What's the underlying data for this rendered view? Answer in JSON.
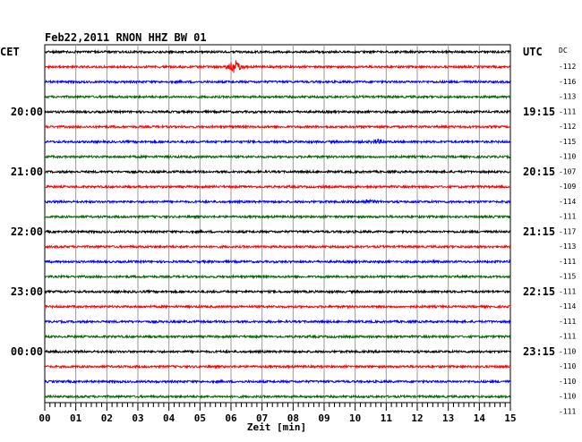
{
  "chart_data": {
    "type": "line",
    "title": "Feb22,2011   RNON HHZ BW 01",
    "xlabel": "Zeit [min]",
    "left_tz": "CET",
    "right_tz": "UTC",
    "dc_label": "DC",
    "xlim": [
      0,
      15
    ],
    "x_ticks": [
      "00",
      "01",
      "02",
      "03",
      "04",
      "05",
      "06",
      "07",
      "08",
      "09",
      "10",
      "11",
      "12",
      "13",
      "14",
      "15"
    ],
    "trace_colors": [
      "#000000",
      "#ff0000",
      "#0000ff",
      "#006600"
    ],
    "left_time_labels": [
      {
        "trace": 4,
        "text": "20:00"
      },
      {
        "trace": 8,
        "text": "21:00"
      },
      {
        "trace": 12,
        "text": "22:00"
      },
      {
        "trace": 16,
        "text": "23:00"
      },
      {
        "trace": 20,
        "text": "00:00"
      }
    ],
    "right_time_labels": [
      {
        "trace": 0,
        "text": "UTC"
      },
      {
        "trace": 4,
        "text": "19:15"
      },
      {
        "trace": 8,
        "text": "20:15"
      },
      {
        "trace": 12,
        "text": "21:15"
      },
      {
        "trace": 16,
        "text": "22:15"
      },
      {
        "trace": 20,
        "text": "23:15"
      }
    ],
    "dc_offsets": [
      "-112",
      "-116",
      "-113",
      "-111",
      "-112",
      "-115",
      "-110",
      "-107",
      "-109",
      "-114",
      "-111",
      "-117",
      "-113",
      "-111",
      "-115",
      "-111",
      "-114",
      "-111",
      "-111",
      "-110",
      "-110",
      "-110",
      "-110",
      "-111"
    ],
    "events": [
      {
        "trace": 1,
        "minute": 6.1,
        "amplitude": "large"
      },
      {
        "trace": 6,
        "minute": 10.7,
        "amplitude": "small"
      },
      {
        "trace": 10,
        "minute": 10.4,
        "amplitude": "small"
      }
    ],
    "series_count": 24,
    "grid": true
  }
}
